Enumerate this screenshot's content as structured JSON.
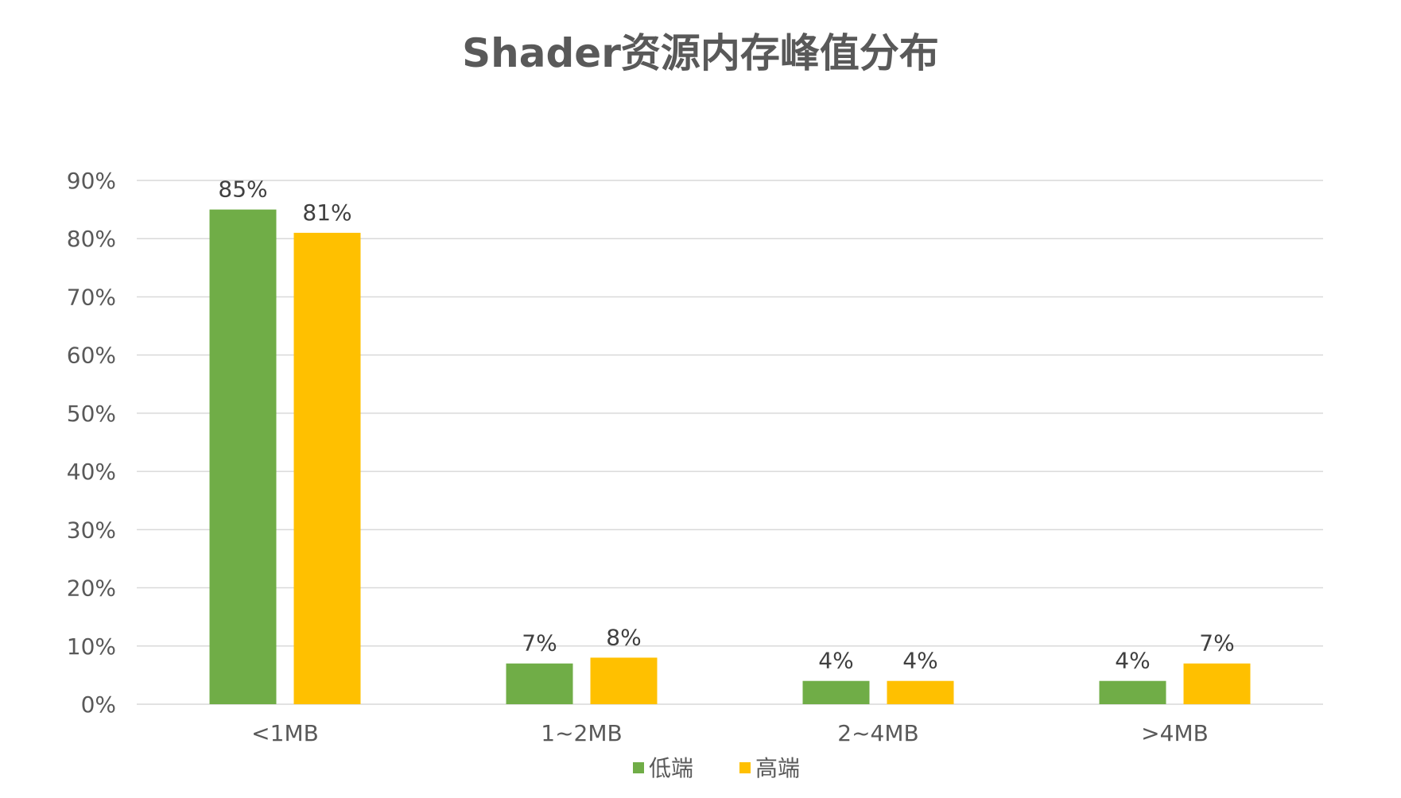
{
  "chart_data": {
    "type": "bar",
    "title": "Shader资源内存峰值分布",
    "categories": [
      "<1MB",
      "1~2MB",
      "2~4MB",
      ">4MB"
    ],
    "series": [
      {
        "name": "低端",
        "color": "#70AD47",
        "values": [
          85,
          7,
          4,
          4
        ],
        "labels": [
          "85%",
          "7%",
          "4%",
          "4%"
        ]
      },
      {
        "name": "高端",
        "color": "#FFC000",
        "values": [
          81,
          8,
          4,
          7
        ],
        "labels": [
          "81%",
          "8%",
          "4%",
          "7%"
        ]
      }
    ],
    "y_ticks": [
      "0%",
      "10%",
      "20%",
      "30%",
      "40%",
      "50%",
      "60%",
      "70%",
      "80%",
      "90%"
    ],
    "ylim": [
      0,
      90
    ],
    "grid": true,
    "legend_position": "bottom",
    "gridline_color": "#D9D9D9"
  }
}
